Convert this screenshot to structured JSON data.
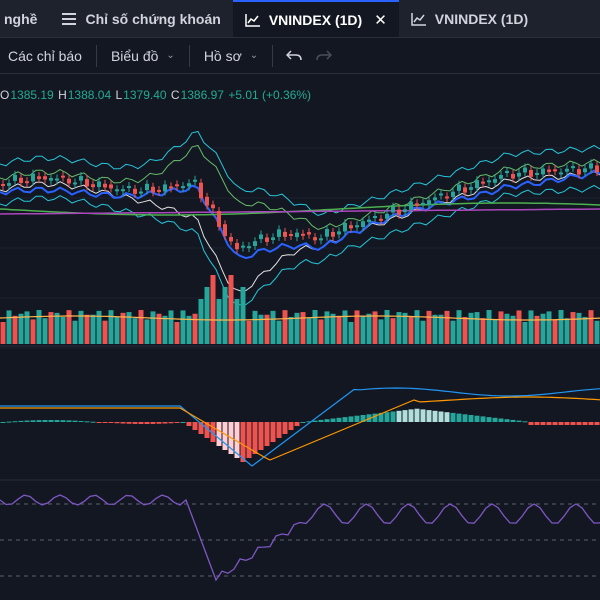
{
  "tabs": [
    {
      "label": "nghề",
      "icon": "none",
      "active": false
    },
    {
      "label": "Chỉ số chứng khoán",
      "icon": "list-icon",
      "active": false
    },
    {
      "label": "VNINDEX (1D)",
      "icon": "chart-icon",
      "active": true,
      "closable": true
    },
    {
      "label": "VNINDEX (1D)",
      "icon": "chart-icon",
      "active": false
    }
  ],
  "toolbar": {
    "indicators_label": "Các chỉ báo",
    "chart_type_label": "Biểu đồ",
    "profile_label": "Hồ sơ",
    "undo_icon": "undo-icon",
    "redo_icon": "redo-icon"
  },
  "legend": {
    "o_key": "O",
    "o_val": "1385.19",
    "h_key": "H",
    "h_val": "1388.04",
    "l_key": "L",
    "l_val": "1379.40",
    "c_key": "C",
    "c_val": "1386.97",
    "change": "+5.01 (+0.36%)"
  },
  "colors": {
    "background": "#131722",
    "up": "#26a69a",
    "down": "#ef5350",
    "accent": "#2962ff",
    "rsi": "#7e57c2"
  }
}
